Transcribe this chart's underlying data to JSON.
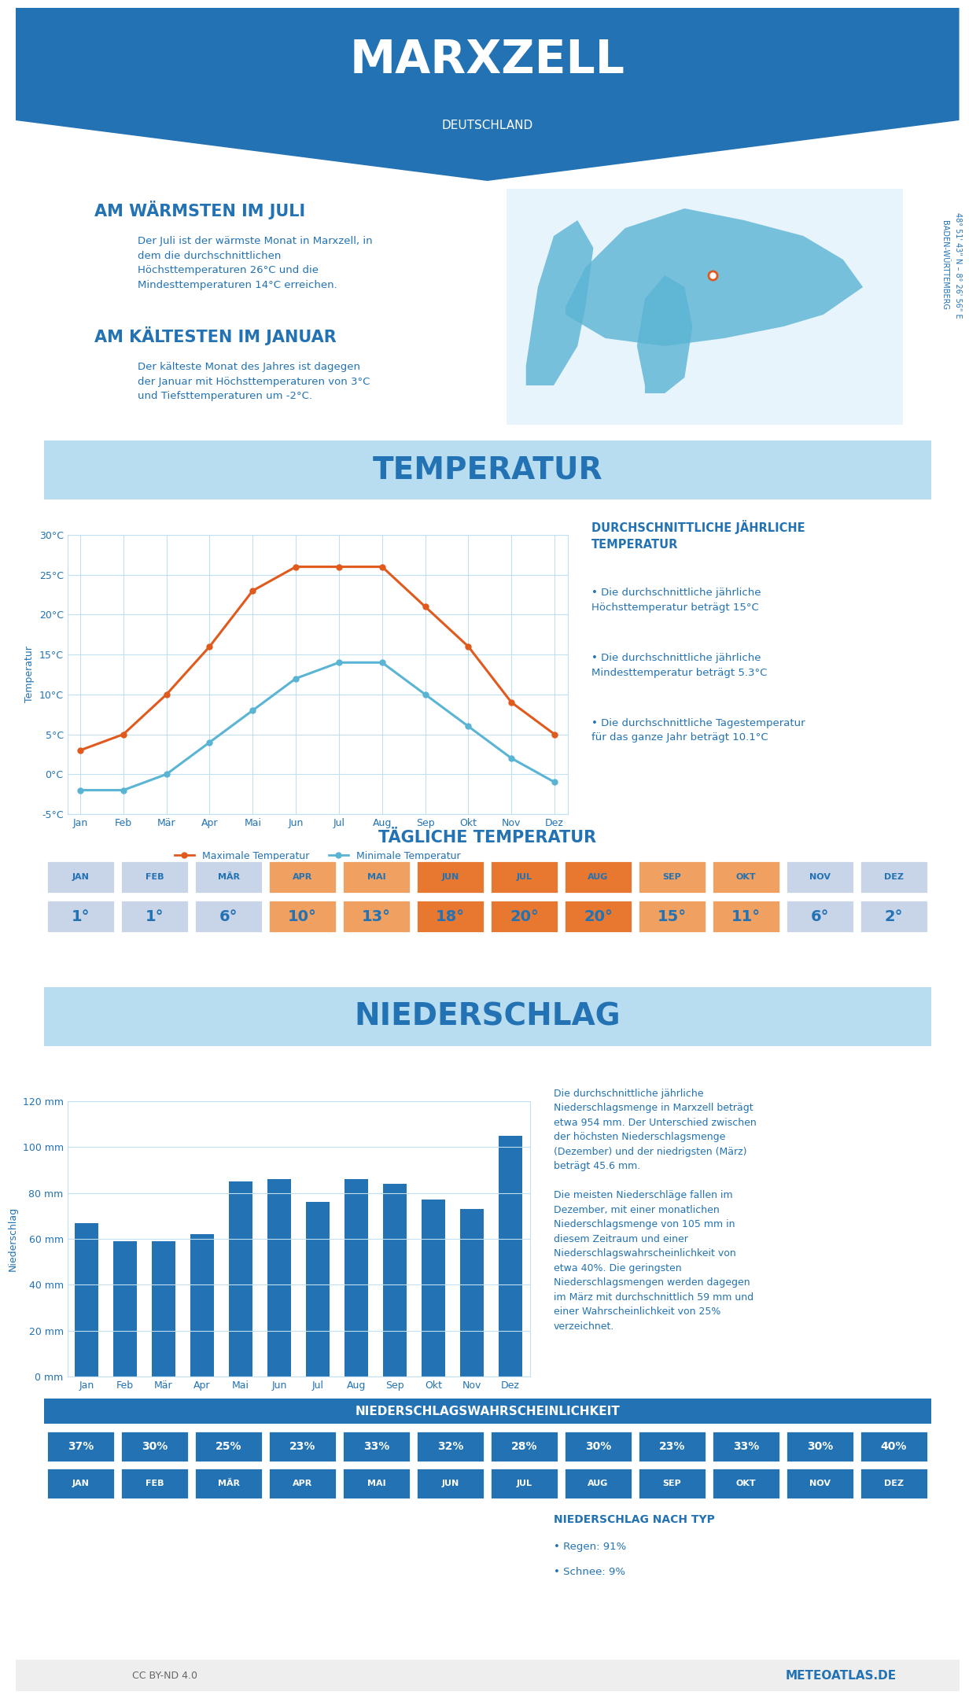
{
  "title": "MARXZELL",
  "subtitle": "DEUTSCHLAND",
  "header_bg": "#2272b4",
  "bg_color": "#ffffff",
  "light_blue_bg": "#b8ddf0",
  "medium_blue": "#2272b4",
  "dark_blue": "#1a5276",
  "warmest_title": "AM WÄRMSTEN IM JULI",
  "warmest_text": "Der Juli ist der wärmste Monat in Marxzell, in\ndem die durchschnittlichen\nHöchsttemperaturen 26°C und die\nMindesttemperaturen 14°C erreichen.",
  "coldest_title": "AM KÄLTESTEN IM JANUAR",
  "coldest_text": "Der kälteste Monat des Jahres ist dagegen\nder Januar mit Höchsttemperaturen von 3°C\nund Tiefsttemperaturen um -2°C.",
  "temp_section_title": "TEMPERATUR",
  "niederschlag_section_title": "NIEDERSCHLAG",
  "months": [
    "Jan",
    "Feb",
    "Mär",
    "Apr",
    "Mai",
    "Jun",
    "Jul",
    "Aug",
    "Sep",
    "Okt",
    "Nov",
    "Dez"
  ],
  "max_temp": [
    3,
    5,
    10,
    16,
    23,
    26,
    26,
    26,
    21,
    16,
    9,
    5
  ],
  "min_temp": [
    -2,
    -2,
    0,
    4,
    8,
    12,
    14,
    14,
    10,
    6,
    2,
    -1
  ],
  "max_temp_color": "#e05a1e",
  "min_temp_color": "#5ab4d4",
  "temp_grid_color": "#c0dff0",
  "avg_annual_title": "DURCHSCHNITTLICHE JÄHRLICHE\nTEMPERATUR",
  "avg_text1": "Die durchschnittliche jährliche\nHöchsttemperatur beträgt 15°C",
  "avg_text2": "Die durchschnittliche jährliche\nMindesttemperatur beträgt 5.3°C",
  "avg_text3": "Die durchschnittliche Tagestemperatur\nfür das ganze Jahr beträgt 10.1°C",
  "daily_temp_title": "TÄGLICHE TEMPERATUR",
  "daily_temps": [
    1,
    1,
    6,
    10,
    13,
    18,
    20,
    20,
    15,
    11,
    6,
    2
  ],
  "daily_temp_header_colors": [
    "#c8d4e8",
    "#c8d4e8",
    "#c8d4e8",
    "#f0a060",
    "#f0a060",
    "#e87830",
    "#e87830",
    "#e87830",
    "#f0a060",
    "#f0a060",
    "#c8d4e8",
    "#c8d4e8"
  ],
  "daily_temp_val_colors": [
    "#c8d4e8",
    "#c8d4e8",
    "#c8d4e8",
    "#f0a060",
    "#f0a060",
    "#e87830",
    "#e87830",
    "#e87830",
    "#f0a060",
    "#f0a060",
    "#c8d4e8",
    "#c8d4e8"
  ],
  "precip_values": [
    67,
    59,
    59,
    62,
    85,
    86,
    76,
    86,
    84,
    77,
    73,
    105
  ],
  "precip_color": "#2272b4",
  "precip_text": "Die durchschnittliche jährliche\nNiederschlagsmenge in Marxzell beträgt\netwa 954 mm. Der Unterschied zwischen\nder höchsten Niederschlagsmenge\n(Dezember) und der niedrigsten (März)\nbeträgt 45.6 mm.\n\nDie meisten Niederschläge fallen im\nDezember, mit einer monatlichen\nNiederschlagsmenge von 105 mm in\ndiesem Zeitraum und einer\nNiederschlagswahrscheinlichkeit von\netwa 40%. Die geringsten\nNiederschlagsmengen werden dagegen\nim März mit durchschnittlich 59 mm und\neiner Wahrscheinlichkeit von 25%\nverzeichnet.",
  "precip_prob_title": "NIEDERSCHLAGSWAHRSCHEINLICHKEIT",
  "precip_prob": [
    37,
    30,
    25,
    23,
    33,
    32,
    28,
    30,
    23,
    33,
    30,
    40
  ],
  "rain_snow_title": "NIEDERSCHLAG NACH TYP",
  "rain_pct": "91%",
  "snow_pct": "9%",
  "coord_text": "48° 51' 43\" N",
  "coord_text2": "8° 26' 56\" E",
  "state_text": "BADEN-WÜRTTEMBERG",
  "footer_text": "METEOATLAS.DE",
  "license_text": "CC BY-ND 4.0"
}
